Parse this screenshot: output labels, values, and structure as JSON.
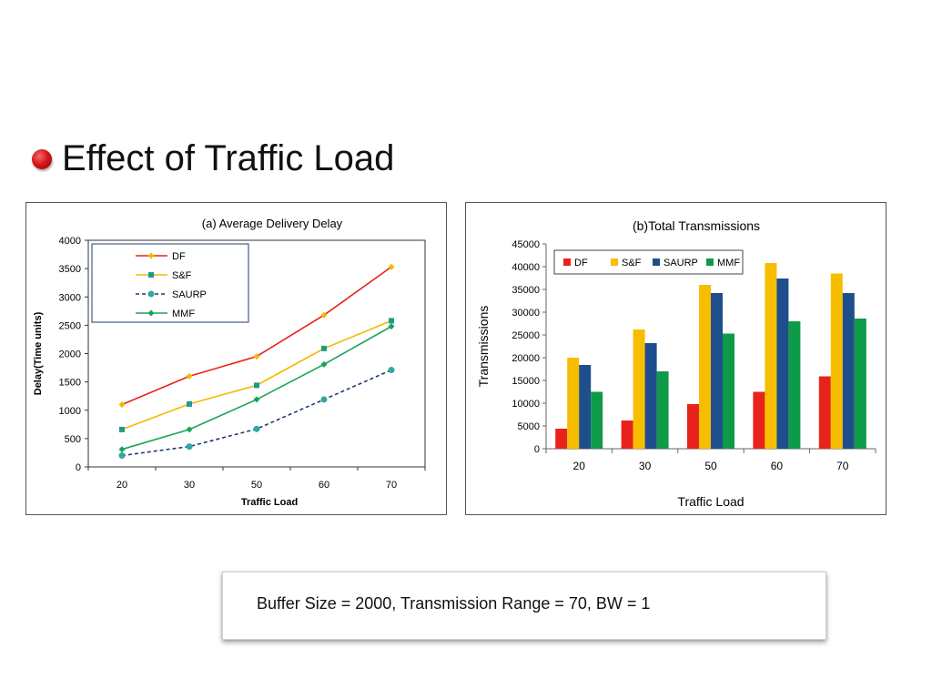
{
  "slide": {
    "title": "Effect of Traffic Load",
    "note": "Buffer Size = 2000, Transmission Range = 70, BW = 1"
  },
  "chart_data": [
    {
      "type": "line",
      "title": "(a) Average Delivery Delay",
      "xlabel": "Traffic Load",
      "ylabel": "Delay(Time units)",
      "categories": [
        "20",
        "30",
        "50",
        "60",
        "70"
      ],
      "ylim": [
        0,
        4000
      ],
      "yticks": [
        0,
        500,
        1000,
        1500,
        2000,
        2500,
        3000,
        3500,
        4000
      ],
      "legend_position": "top-left",
      "grid": false,
      "series": [
        {
          "name": "DF",
          "values": [
            1100,
            1600,
            1950,
            2680,
            3530
          ],
          "color": "#e8231c",
          "marker": "diamond",
          "marker_color": "#f5b800",
          "dash": false
        },
        {
          "name": "S&F",
          "values": [
            660,
            1110,
            1440,
            2090,
            2580
          ],
          "color": "#f5b800",
          "marker": "square",
          "marker_color": "#1e9a8c",
          "dash": false
        },
        {
          "name": "SAURP",
          "values": [
            200,
            360,
            670,
            1190,
            1710
          ],
          "color": "#1f3b6e",
          "marker": "circle",
          "marker_color": "#31a8a0",
          "dash": true
        },
        {
          "name": "MMF",
          "values": [
            310,
            660,
            1190,
            1810,
            2480
          ],
          "color": "#1aa35a",
          "marker": "diamond",
          "marker_color": "#1aa35a",
          "dash": false
        }
      ]
    },
    {
      "type": "bar",
      "title": "(b)Total Transmissions",
      "xlabel": "Traffic Load",
      "ylabel": "Transmissions",
      "categories": [
        "20",
        "30",
        "50",
        "60",
        "70"
      ],
      "ylim": [
        0,
        45000
      ],
      "yticks": [
        0,
        5000,
        10000,
        15000,
        20000,
        25000,
        30000,
        35000,
        40000,
        45000
      ],
      "legend_position": "top-left",
      "grid": false,
      "series": [
        {
          "name": "DF",
          "values": [
            4400,
            6200,
            9800,
            12500,
            15900
          ],
          "color": "#e8231c"
        },
        {
          "name": "S&F",
          "values": [
            20000,
            26200,
            36000,
            40800,
            38500
          ],
          "color": "#f7be00"
        },
        {
          "name": "SAURP",
          "values": [
            18400,
            23200,
            34200,
            37400,
            34200
          ],
          "color": "#1f4e8c"
        },
        {
          "name": "MMF",
          "values": [
            12500,
            17000,
            25300,
            28000,
            28600
          ],
          "color": "#0f9a48"
        }
      ]
    }
  ]
}
